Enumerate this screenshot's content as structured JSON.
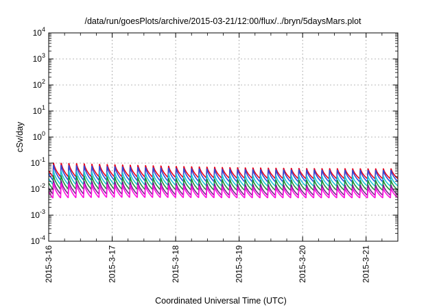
{
  "chart_data": {
    "type": "line",
    "title": "/data/run/goesPlots/archive/2015-03-21/12:00/flux/../bryn/5daysMars.plot",
    "xlabel": "Coordinated Universal Time (UTC)",
    "ylabel": "cSv/day",
    "yscale": "log",
    "ylim": [
      0.0001,
      10000
    ],
    "xlim": [
      "2015-03-16 00:00",
      "2015-03-21 12:00"
    ],
    "x_ticks": [
      "2015-3-16",
      "2015-3-17",
      "2015-3-18",
      "2015-3-19",
      "2015-3-20",
      "2015-3-21"
    ],
    "y_ticks": [
      {
        "base": "10",
        "exp": "-4",
        "value": 0.0001
      },
      {
        "base": "10",
        "exp": "-3",
        "value": 0.001
      },
      {
        "base": "10",
        "exp": "-2",
        "value": 0.01
      },
      {
        "base": "10",
        "exp": "-1",
        "value": 0.1
      },
      {
        "base": "10",
        "exp": "0",
        "value": 1
      },
      {
        "base": "10",
        "exp": "1",
        "value": 10
      },
      {
        "base": "10",
        "exp": "2",
        "value": 100
      },
      {
        "base": "10",
        "exp": "3",
        "value": 1000
      },
      {
        "base": "10",
        "exp": "4",
        "value": 10000
      }
    ],
    "grid": true,
    "legend": "none",
    "period_hours": 2.9,
    "series": [
      {
        "color": "#e8001a",
        "peak_values": [
          0.12,
          0.1,
          0.085,
          0.075,
          0.07,
          0.068
        ],
        "trough_values": [
          0.03,
          0.03,
          0.028,
          0.026,
          0.025,
          0.025
        ]
      },
      {
        "color": "#2f4ad8",
        "peak_values": [
          0.1,
          0.085,
          0.072,
          0.065,
          0.062,
          0.06
        ],
        "trough_values": [
          0.022,
          0.022,
          0.02,
          0.019,
          0.019,
          0.019
        ]
      },
      {
        "color": "#1ec6d8",
        "peak_values": [
          0.06,
          0.05,
          0.042,
          0.038,
          0.036,
          0.035
        ],
        "trough_values": [
          0.015,
          0.015,
          0.014,
          0.013,
          0.013,
          0.013
        ]
      },
      {
        "color": "#1f8f3a",
        "peak_values": [
          0.04,
          0.034,
          0.029,
          0.026,
          0.025,
          0.024
        ],
        "trough_values": [
          0.01,
          0.01,
          0.0095,
          0.009,
          0.009,
          0.009
        ]
      },
      {
        "color": "#7a1f8c",
        "peak_values": [
          0.025,
          0.022,
          0.019,
          0.017,
          0.016,
          0.016
        ],
        "trough_values": [
          0.0065,
          0.0065,
          0.006,
          0.0058,
          0.0058,
          0.0058
        ]
      },
      {
        "color": "#ff10e0",
        "peak_values": [
          0.02,
          0.017,
          0.015,
          0.013,
          0.0125,
          0.012
        ],
        "trough_values": [
          0.0045,
          0.0048,
          0.0047,
          0.0046,
          0.0046,
          0.0046
        ]
      }
    ]
  }
}
